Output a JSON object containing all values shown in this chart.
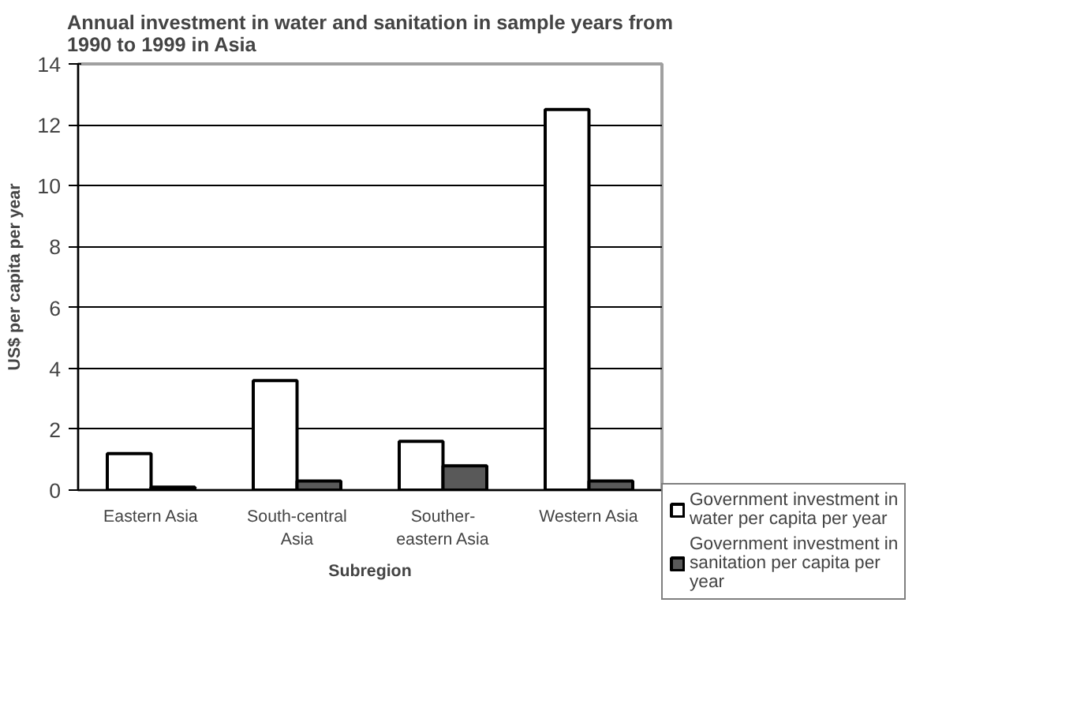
{
  "chart_data": {
    "type": "bar",
    "title": "Annual investment in water and sanitation in sample years from 1990 to 1999 in Asia",
    "xlabel": "Subregion",
    "ylabel": "US$ per capita per year",
    "categories": [
      "Eastern Asia",
      "South-central Asia",
      "Souther-eastern Asia",
      "Western Asia"
    ],
    "series": [
      {
        "name": "Government investment in water per capita per year",
        "color": "#ffffff",
        "values": [
          1.2,
          3.6,
          1.6,
          12.5
        ]
      },
      {
        "name": "Government investment in sanitation per capita per year",
        "color": "#595959",
        "values": [
          0.1,
          0.3,
          0.8,
          0.3
        ]
      }
    ],
    "ylim": [
      0,
      14
    ],
    "yticks": [
      0,
      2,
      4,
      6,
      8,
      10,
      12,
      14
    ],
    "grid": "y",
    "legend": "right"
  }
}
